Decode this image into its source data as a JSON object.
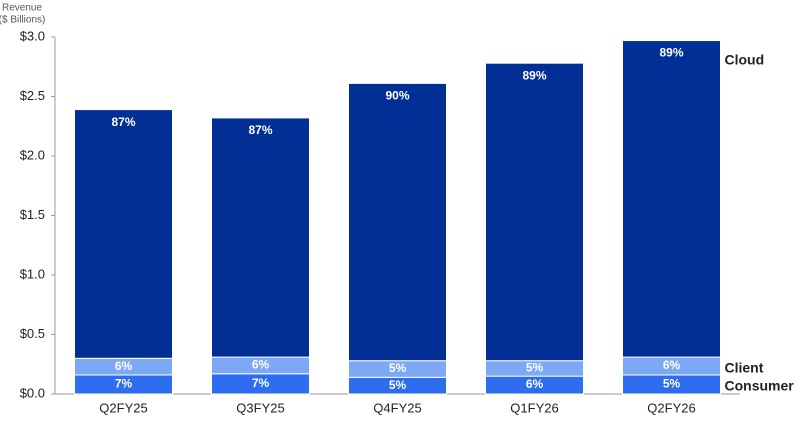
{
  "chart_data": {
    "type": "stacked_bar",
    "y_label": [
      "Revenue",
      "($ Billions)"
    ],
    "categories": [
      "Q2FY25",
      "Q3FY25",
      "Q4FY25",
      "Q1FY26",
      "Q2FY26"
    ],
    "series": [
      {
        "name": "Consumer",
        "color": "#2e6cf0",
        "values": [
          0.16,
          0.17,
          0.14,
          0.15,
          0.16
        ],
        "share_labels": [
          "7%",
          "7%",
          "5%",
          "6%",
          "5%"
        ]
      },
      {
        "name": "Client",
        "color": "#7da8f6",
        "values": [
          0.14,
          0.14,
          0.14,
          0.13,
          0.15
        ],
        "share_labels": [
          "6%",
          "6%",
          "5%",
          "5%",
          "6%"
        ]
      },
      {
        "name": "Cloud",
        "color": "#022f96",
        "values": [
          2.09,
          2.01,
          2.33,
          2.5,
          2.66
        ],
        "share_labels": [
          "87%",
          "87%",
          "90%",
          "89%",
          "89%"
        ]
      }
    ],
    "ylim": [
      0,
      3.0
    ],
    "yticks": [
      {
        "value": 0,
        "label": "$0.0"
      },
      {
        "value": 0.5,
        "label": "$0.5"
      },
      {
        "value": 1.0,
        "label": "$1.0"
      },
      {
        "value": 1.5,
        "label": "$1.5"
      },
      {
        "value": 2.0,
        "label": "$2.0"
      },
      {
        "value": 2.5,
        "label": "$2.5"
      },
      {
        "value": 3.0,
        "label": "$3.0"
      }
    ]
  }
}
